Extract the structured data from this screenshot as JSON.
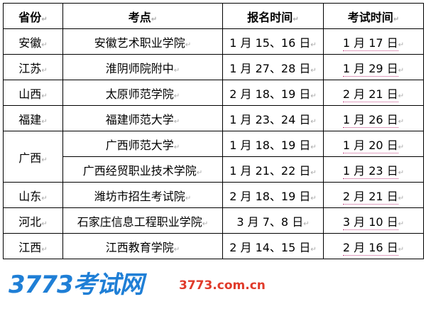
{
  "headers": [
    "省份",
    "考点",
    "报名时间",
    "考试时间"
  ],
  "rows": [
    {
      "province": "安徽",
      "site": "安徽艺术职业学院",
      "reg": "1 月 15、16 日",
      "exam": "1 月 17 日"
    },
    {
      "province": "江苏",
      "site": "淮阴师院附中",
      "reg": "1 月 27、28 日",
      "exam": "1 月 29 日"
    },
    {
      "province": "山西",
      "site": "太原师范学院",
      "reg": "2 月 18、19 日",
      "exam": "2 月 21 日"
    },
    {
      "province": "福建",
      "site": "福建师范大学",
      "reg": "1 月 23、24 日",
      "exam": "1 月 26 日"
    },
    {
      "province": "广西",
      "site": "广西师范大学",
      "reg": "1 月 18、19 日",
      "exam": "1 月 20 日"
    },
    {
      "province": "",
      "site": "广西经贸职业技术学院",
      "reg": "1 月 21、22 日",
      "exam": "1 月 23 日"
    },
    {
      "province": "山东",
      "site": "潍坊市招生考试院",
      "reg": "2 月 18、19 日",
      "exam": "2 月 21 日"
    },
    {
      "province": "河北",
      "site": "石家庄信息工程职业学院",
      "reg": "3 月 7、8 日",
      "exam": "3 月 10 日"
    },
    {
      "province": "江西",
      "site": "江西教育学院",
      "reg": "2 月 14、15 日",
      "exam": "2 月 16 日"
    }
  ],
  "watermark": {
    "logo": "3773考试网",
    "url": "3773.com.cn"
  }
}
